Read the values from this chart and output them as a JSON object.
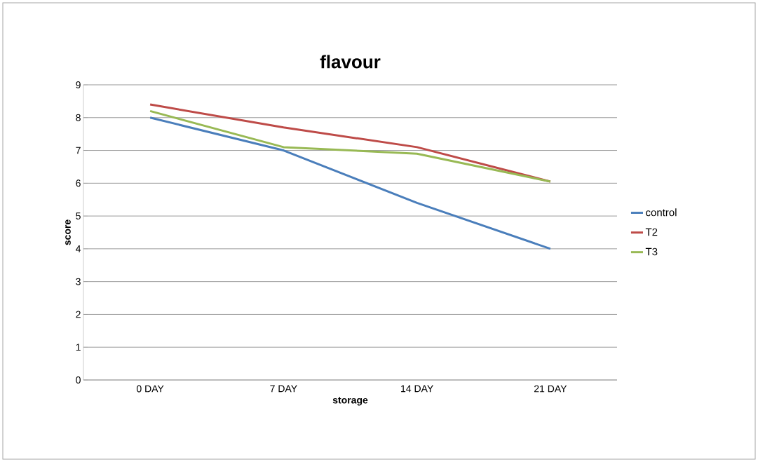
{
  "chart_data": {
    "type": "line",
    "title": "flavour",
    "xlabel": "storage",
    "ylabel": "score",
    "categories": [
      "0 DAY",
      "7 DAY",
      "14 DAY",
      "21 DAY"
    ],
    "series": [
      {
        "name": "control",
        "color": "#4a7ebb",
        "values": [
          8.0,
          7.0,
          5.4,
          4.0
        ]
      },
      {
        "name": "T2",
        "color": "#be4b48",
        "values": [
          8.4,
          7.7,
          7.1,
          6.05
        ]
      },
      {
        "name": "T3",
        "color": "#98b954",
        "values": [
          8.2,
          7.1,
          6.9,
          6.05
        ]
      }
    ],
    "ylim": [
      0,
      9
    ],
    "yticks": [
      0,
      1,
      2,
      3,
      4,
      5,
      6,
      7,
      8,
      9
    ],
    "grid": "y",
    "legend": "right",
    "marker": "none",
    "line_style": "solid"
  }
}
